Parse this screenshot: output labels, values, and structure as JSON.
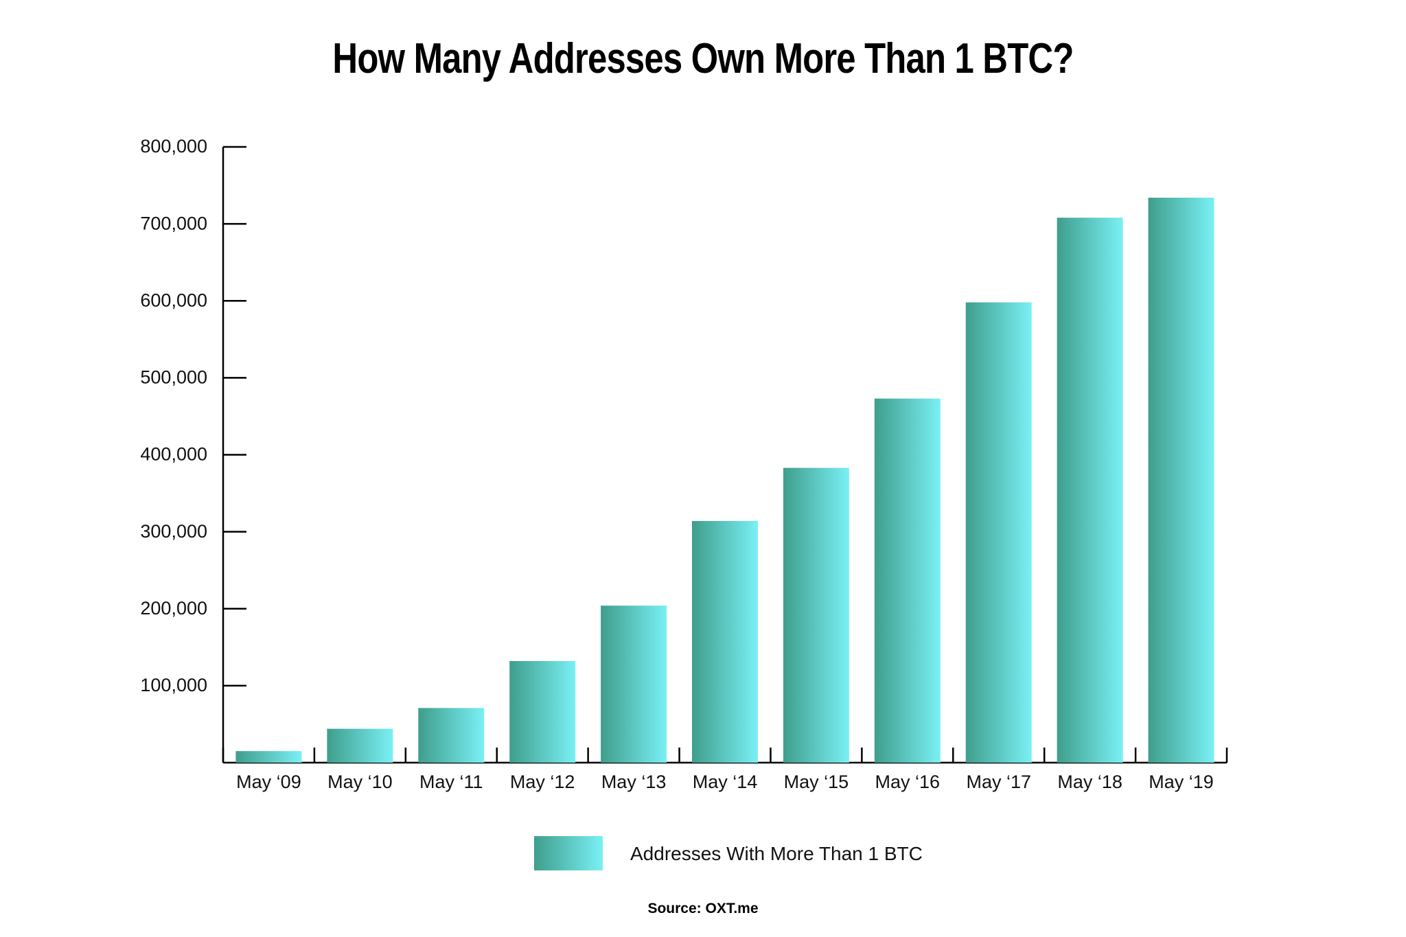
{
  "title": "How Many Addresses Own More Than 1 BTC?",
  "legend": {
    "label": "Addresses With More Than 1 BTC"
  },
  "source": "Source: OXT.me",
  "colors": {
    "gradient_start": "#3f9e8c",
    "gradient_end": "#7af0f5",
    "axis": "#000000"
  },
  "chart_data": {
    "type": "bar",
    "title": "How Many Addresses Own More Than 1 BTC?",
    "xlabel": "",
    "ylabel": "",
    "categories": [
      "May ‘09",
      "May ‘10",
      "May ‘11",
      "May ‘12",
      "May ‘13",
      "May ‘14",
      "May ‘15",
      "May ‘16",
      "May ‘17",
      "May ‘18",
      "May ‘19"
    ],
    "series": [
      {
        "name": "Addresses With More Than 1 BTC",
        "values": [
          15000,
          44000,
          71000,
          132000,
          204000,
          314000,
          383000,
          473000,
          598000,
          708000,
          734000
        ]
      }
    ],
    "ylim": [
      0,
      800000
    ],
    "yticks": [
      100000,
      200000,
      300000,
      400000,
      500000,
      600000,
      700000,
      800000
    ],
    "ytick_labels": [
      "100,000",
      "200,000",
      "300,000",
      "400,000",
      "500,000",
      "600,000",
      "700,000",
      "800,000"
    ],
    "grid": false,
    "legend_position": "bottom"
  }
}
